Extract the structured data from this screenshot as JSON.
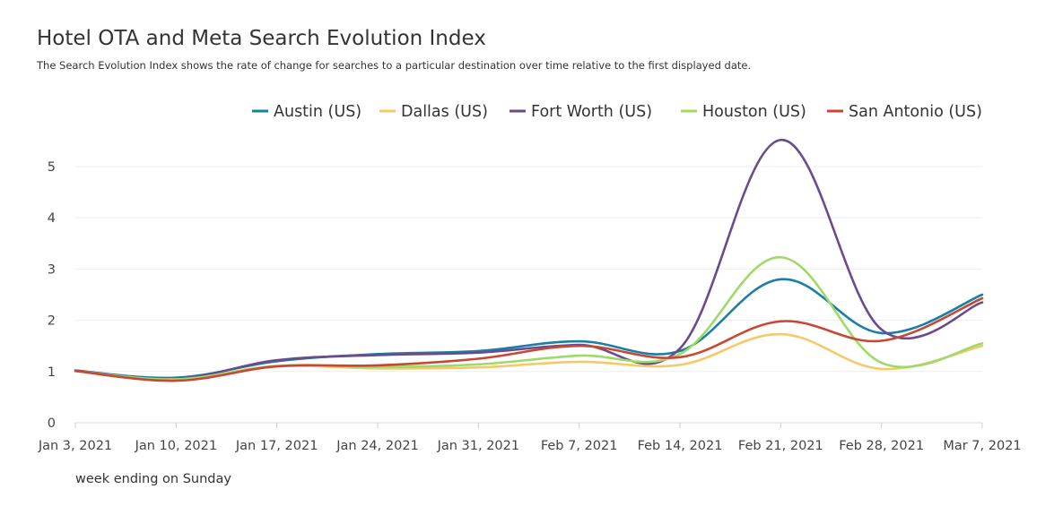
{
  "title": "Hotel OTA and Meta Search Evolution Index",
  "subtitle": "The Search Evolution Index shows the rate of change for searches to a particular destination over time relative to the first displayed date.",
  "chart_data": {
    "type": "line",
    "title": "Hotel OTA and Meta Search Evolution Index",
    "subtitle": "The Search Evolution Index shows the rate of change for searches to a particular destination over time relative to the first displayed date.",
    "xlabel": "week ending on Sunday",
    "ylabel": "",
    "x": [
      "Jan 3, 2021",
      "Jan 10, 2021",
      "Jan 17, 2021",
      "Jan 24, 2021",
      "Jan 31, 2021",
      "Feb 7, 2021",
      "Feb 14, 2021",
      "Feb 21, 2021",
      "Feb 28, 2021",
      "Mar 7, 2021"
    ],
    "ylim": [
      0,
      5.6
    ],
    "yticks": [
      0,
      1,
      2,
      3,
      4,
      5
    ],
    "grid": true,
    "legend_position": "top-right",
    "series": [
      {
        "name": "Austin (US)",
        "color": "#1a7fa4",
        "values": [
          1.02,
          0.88,
          1.2,
          1.34,
          1.4,
          1.59,
          1.4,
          2.8,
          1.75,
          2.5
        ]
      },
      {
        "name": "Dallas (US)",
        "color": "#f5c96a",
        "values": [
          1.01,
          0.84,
          1.1,
          1.06,
          1.08,
          1.19,
          1.13,
          1.73,
          1.05,
          1.5
        ]
      },
      {
        "name": "Fort Worth (US)",
        "color": "#6a4c8c",
        "values": [
          1.02,
          0.86,
          1.22,
          1.32,
          1.37,
          1.52,
          1.45,
          5.52,
          1.82,
          2.35
        ]
      },
      {
        "name": "Houston (US)",
        "color": "#9ed96a",
        "values": [
          1.01,
          0.85,
          1.11,
          1.09,
          1.14,
          1.31,
          1.34,
          3.23,
          1.17,
          1.55
        ]
      },
      {
        "name": "San Antonio (US)",
        "color": "#c94732",
        "values": [
          1.01,
          0.82,
          1.1,
          1.12,
          1.25,
          1.5,
          1.28,
          1.98,
          1.6,
          2.43
        ]
      }
    ]
  }
}
